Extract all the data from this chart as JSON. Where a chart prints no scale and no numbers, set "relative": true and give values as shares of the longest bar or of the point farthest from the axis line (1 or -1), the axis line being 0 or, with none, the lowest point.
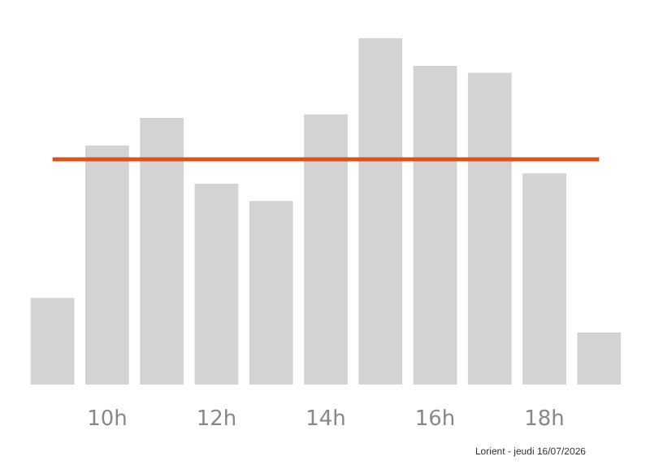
{
  "chart_data": {
    "type": "bar",
    "relative": true,
    "categories": [
      null,
      "10h",
      null,
      "12h",
      null,
      "14h",
      null,
      "16h",
      null,
      "18h",
      null
    ],
    "values": [
      0.25,
      0.69,
      0.77,
      0.58,
      0.53,
      0.78,
      1,
      0.92,
      0.9,
      0.61,
      0.15
    ],
    "color": "#d3d3d3",
    "ref_lines": [
      {
        "axis": "y",
        "value": 0.65,
        "color": "#d9531e"
      }
    ],
    "annotations": [
      "Lorient - jeudi 16/07/2026"
    ],
    "grid": false
  }
}
